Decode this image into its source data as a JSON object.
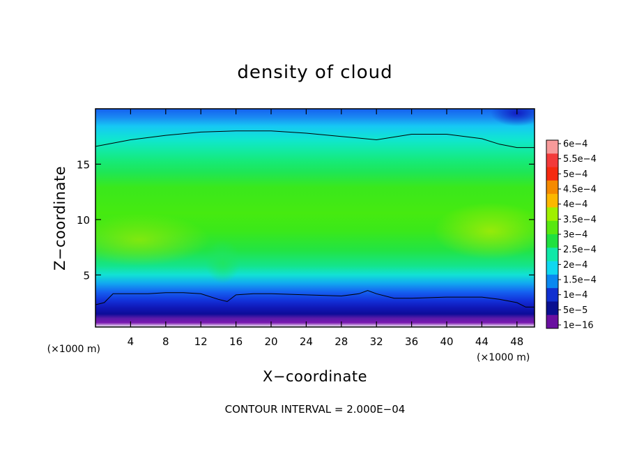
{
  "chart_data": {
    "type": "heatmap",
    "title": "density of cloud",
    "xlabel": "X−coordinate",
    "ylabel": "Z−coordinate",
    "x_unit": "(×1000 m)",
    "z_unit": "(×1000 m)",
    "xlim": [
      0,
      50
    ],
    "ylim": [
      0.3,
      20
    ],
    "x_ticks": [
      4,
      8,
      12,
      16,
      20,
      24,
      28,
      32,
      36,
      40,
      44,
      48
    ],
    "y_ticks": [
      5,
      10,
      15
    ],
    "contour_interval_text": "CONTOUR INTERVAL = 2.000E−04",
    "colorbar": {
      "labels": [
        "6e−4",
        "5.5e−4",
        "5e−4",
        "4.5e−4",
        "4e−4",
        "3.5e−4",
        "3e−4",
        "2.5e−4",
        "2e−4",
        "1.5e−4",
        "1e−4",
        "5e−5",
        "1e−16"
      ],
      "colors": [
        "#f79a9a",
        "#f33a3a",
        "#f52a10",
        "#f58a00",
        "#fcb800",
        "#a0f000",
        "#58e810",
        "#20e040",
        "#10e8a8",
        "#10d8f0",
        "#0a88f0",
        "#1030d0",
        "#0a1090",
        "#6a10a0"
      ]
    },
    "contours": [
      {
        "level": "2.000E−04",
        "x": [
          0,
          2,
          4,
          8,
          12,
          16,
          20,
          24,
          28,
          32,
          36,
          40,
          44,
          46,
          48,
          50
        ],
        "z": [
          16.6,
          16.9,
          17.2,
          17.6,
          17.9,
          18.0,
          18.0,
          17.8,
          17.5,
          17.2,
          17.7,
          17.7,
          17.3,
          16.8,
          16.5,
          16.5
        ]
      },
      {
        "level": "2.000E−04",
        "x": [
          0,
          1,
          2,
          4,
          6,
          8,
          10,
          12,
          14,
          15,
          16,
          18,
          20,
          24,
          28,
          30,
          31,
          32,
          34,
          36,
          40,
          44,
          46,
          48,
          49,
          50
        ],
        "z": [
          2.3,
          2.5,
          3.3,
          3.3,
          3.3,
          3.4,
          3.4,
          3.3,
          2.8,
          2.6,
          3.2,
          3.3,
          3.3,
          3.2,
          3.1,
          3.3,
          3.6,
          3.3,
          2.9,
          2.9,
          3.0,
          3.0,
          2.8,
          2.5,
          2.1,
          2.1
        ]
      }
    ]
  }
}
